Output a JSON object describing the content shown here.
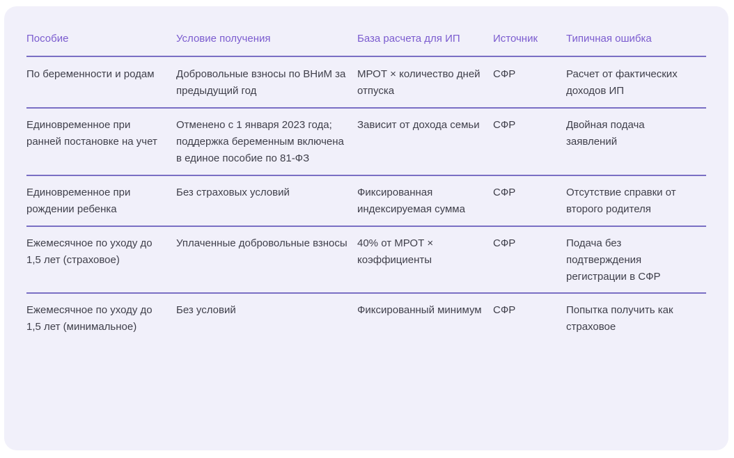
{
  "table": {
    "headers": [
      "Пособие",
      "Условие получения",
      "База расчета для ИП",
      "Источник",
      "Типичная ошибка"
    ],
    "rows": [
      [
        "По беременности и родам",
        "Добровольные взносы по ВНиМ за предыдущий год",
        "МРОТ × количество дней отпуска",
        "СФР",
        "Расчет от фактических доходов ИП"
      ],
      [
        "Единовременное при ранней постановке на учет",
        "Отменено с 1 января 2023 года; поддержка беременным включена в единое пособие по 81-ФЗ",
        "Зависит от дохода семьи",
        "СФР",
        "Двойная подача заявлений"
      ],
      [
        "Единовременное при рождении ребенка",
        "Без страховых условий",
        "Фиксированная индексируемая сумма",
        "СФР",
        "Отсутствие справки от второго родителя"
      ],
      [
        "Ежемесячное по уходу до 1,5 лет (страховое)",
        "Уплаченные добровольные взносы",
        "40% от МРОТ × коэффициенты",
        "СФР",
        "Подача без подтверждения регистрации в СФР"
      ],
      [
        "Ежемесячное по уходу до 1,5 лет (минимальное)",
        "Без условий",
        "Фиксированный минимум",
        "СФР",
        "Попытка получить как страховое"
      ]
    ]
  },
  "colors": {
    "card_bg": "#f1f0fa",
    "header_text": "#7b5ccf",
    "divider": "#7a6fc4",
    "body_text": "#3f3f4a"
  }
}
